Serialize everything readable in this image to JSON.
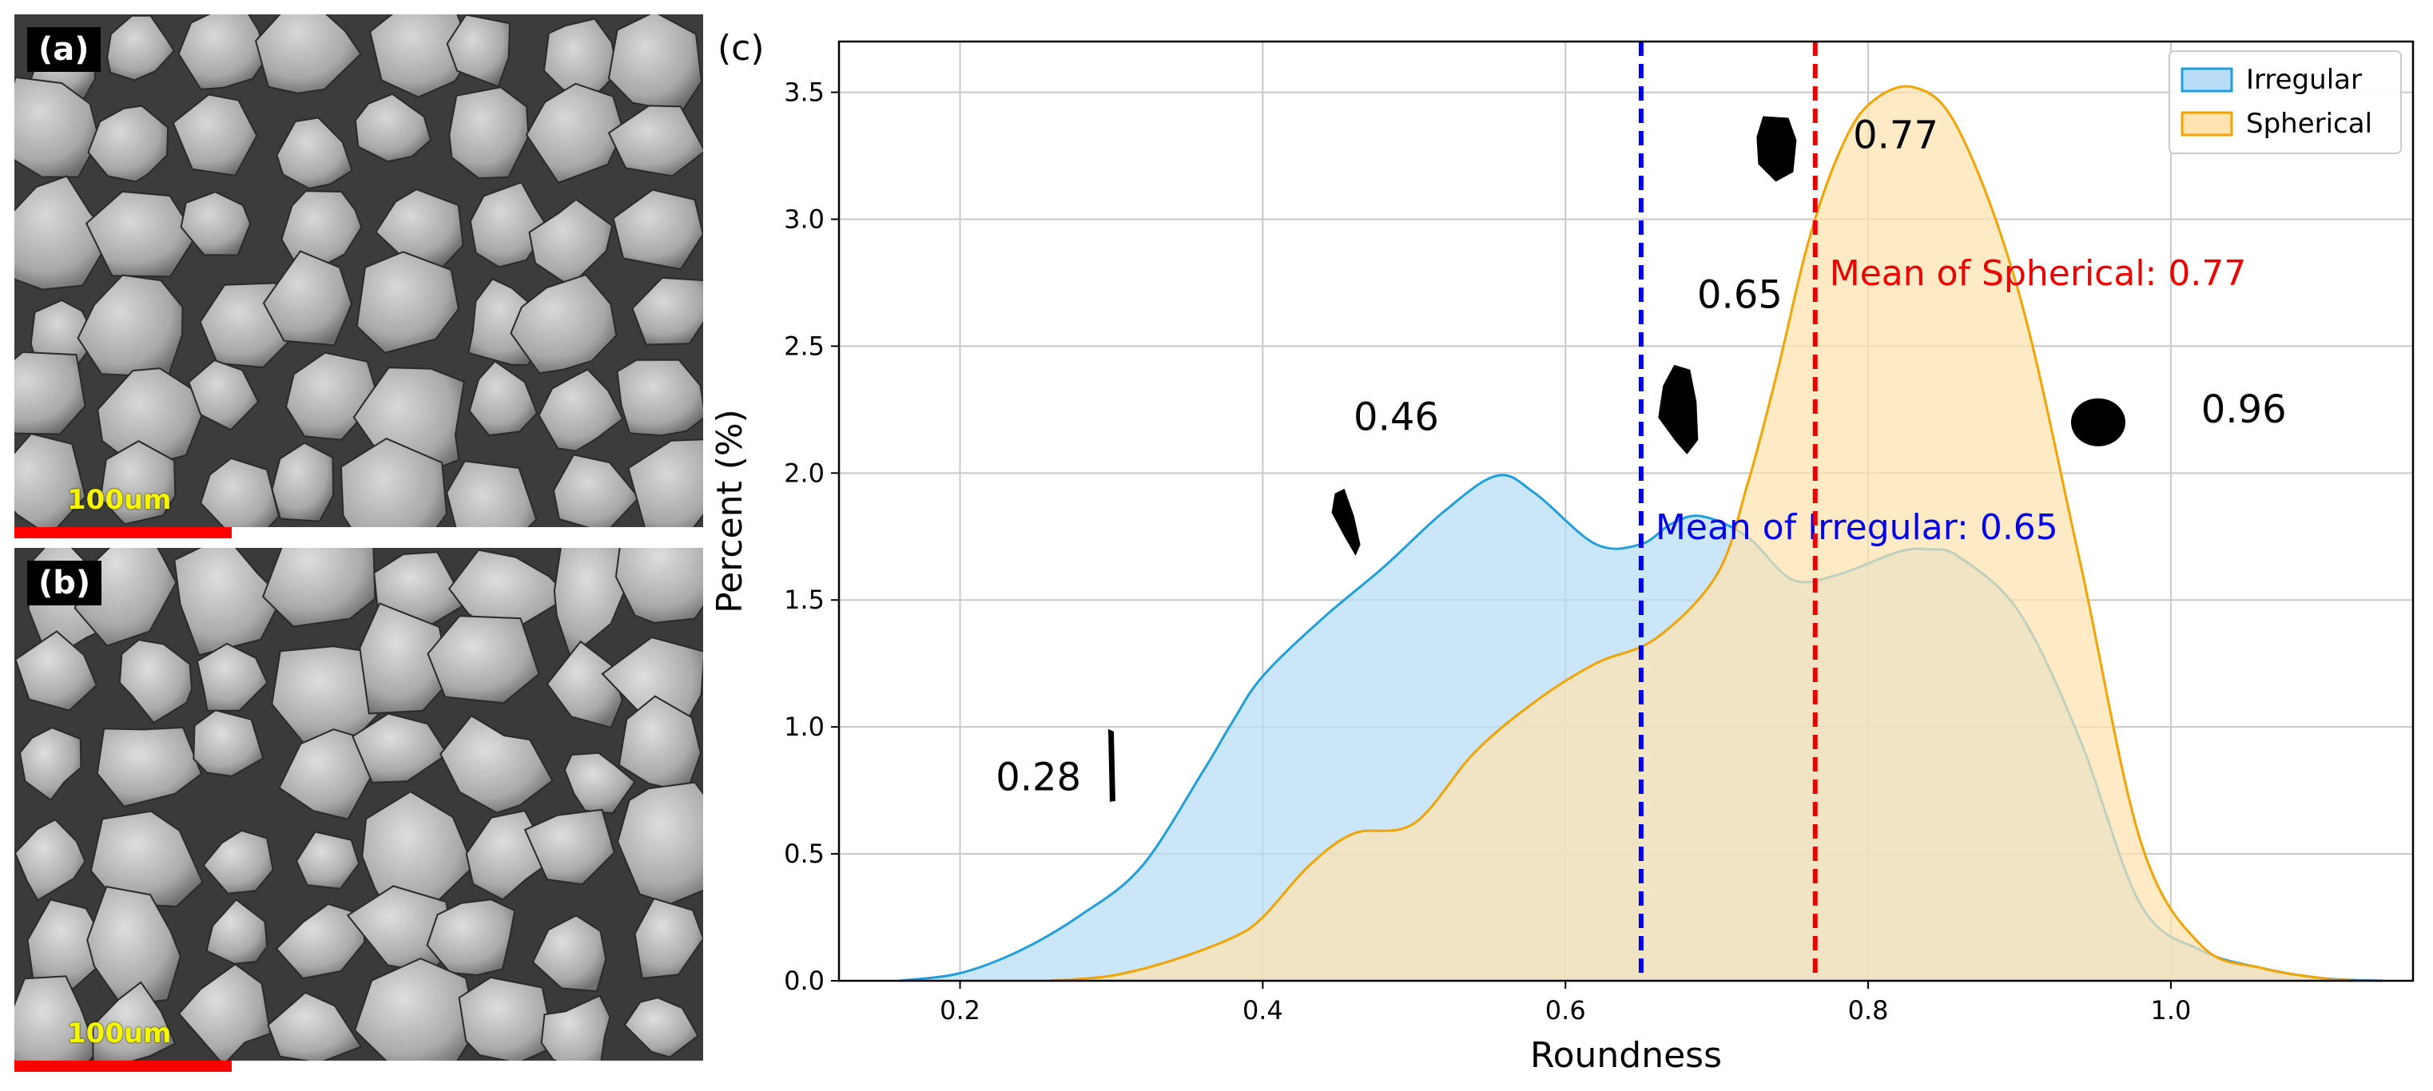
{
  "panels": {
    "a": {
      "label": "(a)",
      "scale_text": "100um"
    },
    "b": {
      "label": "(b)",
      "scale_text": "100um"
    }
  },
  "chart_data": {
    "panel_label": "(c)",
    "type": "area",
    "xlabel": "Roundness",
    "ylabel": "Percent (%)",
    "xlim": [
      0.12,
      1.16
    ],
    "ylim": [
      0,
      3.7
    ],
    "x_ticks": [
      0.2,
      0.4,
      0.6,
      0.8,
      1.0
    ],
    "x_tick_labels": [
      "0.2",
      "0.4",
      "0.6",
      "0.8",
      "1.0"
    ],
    "y_ticks": [
      0.0,
      0.5,
      1.0,
      1.5,
      2.0,
      2.5,
      3.0,
      3.5
    ],
    "y_tick_labels": [
      "0.0",
      "0.5",
      "1.0",
      "1.5",
      "2.0",
      "2.5",
      "3.0",
      "3.5"
    ],
    "grid": true,
    "legend_position": "top-right",
    "series": [
      {
        "name": "Irregular",
        "line_color": "#1f9ee0",
        "fill_color": "#b9ddf7",
        "x": [
          0.16,
          0.2,
          0.24,
          0.28,
          0.32,
          0.36,
          0.38,
          0.4,
          0.44,
          0.48,
          0.52,
          0.555,
          0.58,
          0.62,
          0.65,
          0.67,
          0.69,
          0.72,
          0.75,
          0.78,
          0.82,
          0.84,
          0.86,
          0.9,
          0.94,
          0.98,
          1.02,
          1.06,
          1.1,
          1.14
        ],
        "y": [
          0.0,
          0.03,
          0.12,
          0.26,
          0.45,
          0.82,
          1.02,
          1.2,
          1.43,
          1.63,
          1.85,
          1.99,
          1.92,
          1.72,
          1.72,
          1.8,
          1.83,
          1.75,
          1.58,
          1.6,
          1.69,
          1.7,
          1.67,
          1.45,
          0.95,
          0.3,
          0.12,
          0.05,
          0.01,
          0.0
        ]
      },
      {
        "name": "Spherical",
        "line_color": "#f5a300",
        "fill_color": "#fde3b0",
        "x": [
          0.26,
          0.3,
          0.34,
          0.38,
          0.4,
          0.43,
          0.46,
          0.5,
          0.54,
          0.58,
          0.62,
          0.66,
          0.7,
          0.72,
          0.74,
          0.76,
          0.78,
          0.8,
          0.83,
          0.86,
          0.9,
          0.94,
          0.98,
          1.02,
          1.06,
          1.1,
          1.12
        ],
        "y": [
          0.0,
          0.02,
          0.08,
          0.17,
          0.25,
          0.45,
          0.58,
          0.62,
          0.9,
          1.1,
          1.25,
          1.35,
          1.6,
          1.95,
          2.4,
          2.9,
          3.25,
          3.45,
          3.52,
          3.35,
          2.7,
          1.65,
          0.55,
          0.14,
          0.05,
          0.01,
          0.0
        ]
      }
    ],
    "vlines": [
      {
        "x": 0.65,
        "color": "#0000ee",
        "label": "Mean of Irregular: 0.65"
      },
      {
        "x": 0.765,
        "color": "#ee0000",
        "label": "Mean of Spherical: 0.77"
      }
    ],
    "annotations": [
      {
        "text": "0.28",
        "x": 0.28,
        "y": 0.75
      },
      {
        "text": "0.46",
        "x": 0.46,
        "y": 2.17
      },
      {
        "text": "0.65",
        "x": 0.687,
        "y": 2.65
      },
      {
        "text": "0.77",
        "x": 0.79,
        "y": 3.28
      },
      {
        "text": "0.96",
        "x": 1.02,
        "y": 2.2
      }
    ],
    "colors": {
      "axes": "#000000",
      "grid": "#c8c8c8"
    }
  }
}
